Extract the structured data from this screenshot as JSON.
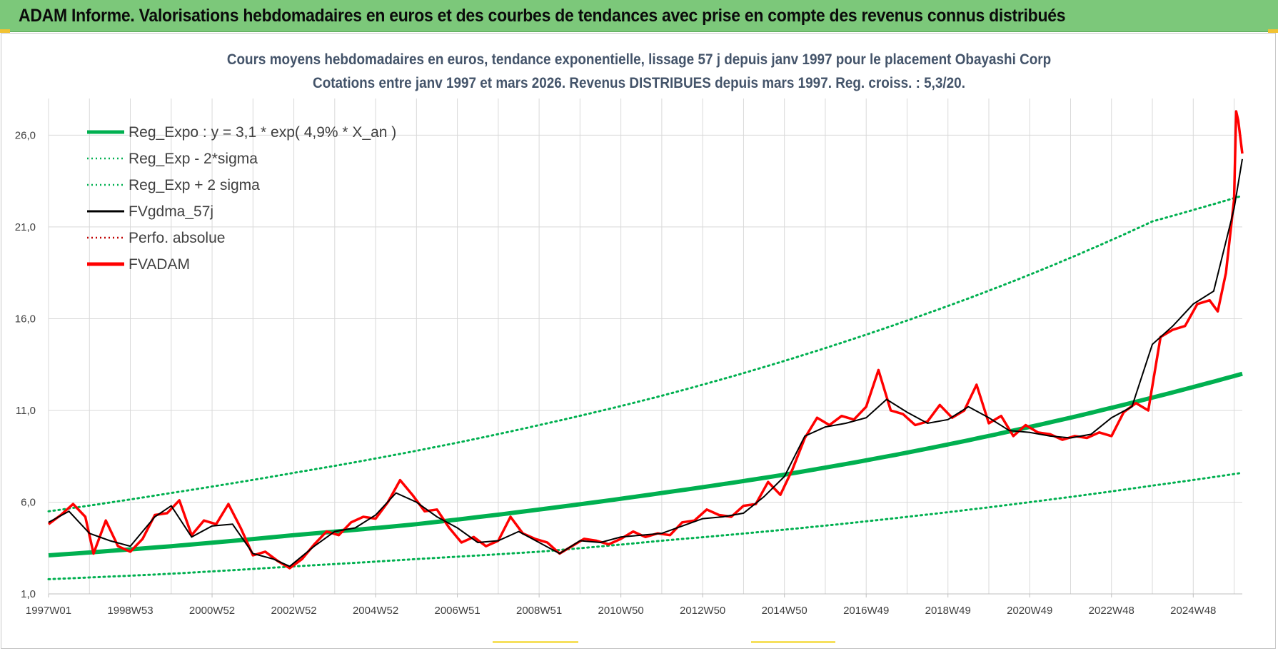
{
  "banner": {
    "text": "ADAM Informe. Valorisations hebdomadaires en euros et des courbes de tendances avec prise en compte des revenus connus distribués"
  },
  "colors": {
    "banner_bg": "#7cc87a",
    "title_text": "#44546a",
    "reg_expo": "#00b050",
    "fvgdma": "#000000",
    "perfo": "#c00000",
    "fvadam": "#ff0000",
    "grid": "#d9d9d9"
  },
  "chart_data": {
    "type": "line",
    "title_line1": "Cours moyens hebdomadaires en euros, tendance exponentielle, lissage 57 j depuis janv 1997 pour le placement Obayashi Corp",
    "title_line2": "Cotations entre janv 1997 et mars 2026. Revenus DISTRIBUES depuis mars 1997. Reg. croiss. : 5,3/20.",
    "ylim": [
      1.0,
      28.0
    ],
    "y_ticks": [
      1.0,
      6.0,
      11.0,
      16.0,
      21.0,
      26.0
    ],
    "y_tick_labels": [
      "1,0",
      "6,0",
      "11,0",
      "16,0",
      "21,0",
      "26,0"
    ],
    "x_range": [
      1997.0,
      2026.2
    ],
    "x_tick_labels": [
      "1997W01",
      "1998W53",
      "2000W52",
      "2002W52",
      "2004W52",
      "2006W51",
      "2008W51",
      "2010W50",
      "2012W50",
      "2014W50",
      "2016W49",
      "2018W49",
      "2020W49",
      "2022W48",
      "2024W48"
    ],
    "x_tick_years": [
      1997.0,
      1999.0,
      2001.0,
      2003.0,
      2005.0,
      2007.0,
      2009.0,
      2011.0,
      2013.0,
      2015.0,
      2017.0,
      2019.0,
      2021.0,
      2023.0,
      2025.0
    ],
    "grid": true,
    "legend_position": "top-left",
    "legend": [
      {
        "key": "reg_expo",
        "label": "Reg_Expo : y = 3,1 * exp( 4,9% *  X_an )",
        "color": "#00b050",
        "style": "solid-thick"
      },
      {
        "key": "reg_minus",
        "label": "Reg_Exp - 2*sigma",
        "color": "#00b050",
        "style": "dotted"
      },
      {
        "key": "reg_plus",
        "label": "Reg_Exp + 2 sigma",
        "color": "#00b050",
        "style": "dotted"
      },
      {
        "key": "fvgdma",
        "label": "FVgdma_57j",
        "color": "#000000",
        "style": "solid"
      },
      {
        "key": "perfo",
        "label": "Perfo. absolue",
        "color": "#c00000",
        "style": "dotted"
      },
      {
        "key": "fvadam",
        "label": "FVADAM",
        "color": "#ff0000",
        "style": "solid-thick"
      }
    ],
    "series": [
      {
        "name": "Reg_Expo : y = 3,1 * exp( 4,9% *  X_an )",
        "x": [
          1997.0,
          2000.0,
          2003.0,
          2006.0,
          2009.0,
          2012.0,
          2015.0,
          2018.0,
          2021.0,
          2024.0,
          2026.2
        ],
        "values": [
          3.1,
          3.6,
          4.2,
          4.8,
          5.6,
          6.5,
          7.5,
          8.7,
          10.1,
          11.7,
          13.0
        ]
      },
      {
        "name": "Reg_Exp - 2*sigma",
        "x": [
          1997.0,
          2000.0,
          2003.0,
          2006.0,
          2009.0,
          2012.0,
          2015.0,
          2018.0,
          2021.0,
          2024.0,
          2026.2
        ],
        "values": [
          1.8,
          2.1,
          2.5,
          2.9,
          3.3,
          3.9,
          4.5,
          5.2,
          6.0,
          6.9,
          7.6
        ]
      },
      {
        "name": "Reg_Exp + 2 sigma",
        "x": [
          1997.0,
          2000.0,
          2003.0,
          2006.0,
          2009.0,
          2012.0,
          2015.0,
          2018.0,
          2021.0,
          2024.0,
          2026.2
        ],
        "values": [
          5.5,
          6.5,
          7.6,
          8.8,
          10.2,
          11.8,
          13.7,
          15.9,
          18.4,
          21.3,
          22.7
        ]
      },
      {
        "name": "FVgdma_57j",
        "x": [
          1997.0,
          1997.5,
          1998.0,
          1998.5,
          1999.0,
          1999.6,
          2000.0,
          2000.5,
          2001.0,
          2001.5,
          2002.0,
          2002.5,
          2002.9,
          2003.5,
          2004.0,
          2004.5,
          2005.0,
          2005.5,
          2006.0,
          2006.5,
          2007.0,
          2007.5,
          2008.0,
          2008.5,
          2009.0,
          2009.5,
          2010.0,
          2010.5,
          2011.0,
          2011.5,
          2012.0,
          2012.5,
          2013.0,
          2013.5,
          2014.0,
          2014.5,
          2015.0,
          2015.5,
          2016.0,
          2016.5,
          2017.0,
          2017.5,
          2018.0,
          2018.5,
          2019.0,
          2019.5,
          2020.0,
          2020.5,
          2021.0,
          2021.5,
          2022.0,
          2022.5,
          2023.0,
          2023.5,
          2024.0,
          2024.5,
          2025.0,
          2025.5,
          2026.0,
          2026.2
        ],
        "values": [
          4.9,
          5.5,
          4.3,
          3.9,
          3.6,
          5.2,
          5.8,
          4.1,
          4.7,
          4.8,
          3.2,
          2.9,
          2.5,
          3.6,
          4.4,
          4.6,
          5.3,
          6.5,
          6.0,
          5.2,
          4.6,
          3.8,
          3.9,
          4.4,
          3.8,
          3.2,
          3.9,
          3.8,
          4.1,
          4.2,
          4.3,
          4.7,
          5.1,
          5.2,
          5.4,
          6.3,
          7.4,
          9.6,
          10.1,
          10.3,
          10.6,
          11.6,
          10.9,
          10.3,
          10.5,
          11.2,
          10.6,
          9.9,
          9.8,
          9.6,
          9.5,
          9.7,
          10.6,
          11.2,
          14.6,
          15.6,
          16.8,
          17.5,
          22.0,
          24.7
        ]
      },
      {
        "name": "FVADAM",
        "x": [
          1997.0,
          1997.3,
          1997.6,
          1997.9,
          1998.1,
          1998.4,
          1998.7,
          1999.0,
          1999.3,
          1999.6,
          1999.9,
          2000.2,
          2000.5,
          2000.8,
          2001.1,
          2001.4,
          2001.7,
          2002.0,
          2002.3,
          2002.6,
          2002.9,
          2003.2,
          2003.5,
          2003.8,
          2004.1,
          2004.4,
          2004.7,
          2005.0,
          2005.3,
          2005.6,
          2005.9,
          2006.2,
          2006.5,
          2006.8,
          2007.1,
          2007.4,
          2007.7,
          2008.0,
          2008.3,
          2008.6,
          2008.9,
          2009.2,
          2009.5,
          2009.8,
          2010.1,
          2010.4,
          2010.7,
          2011.0,
          2011.3,
          2011.6,
          2011.9,
          2012.2,
          2012.5,
          2012.8,
          2013.1,
          2013.4,
          2013.7,
          2014.0,
          2014.3,
          2014.6,
          2014.9,
          2015.2,
          2015.5,
          2015.8,
          2016.1,
          2016.4,
          2016.7,
          2017.0,
          2017.3,
          2017.6,
          2017.9,
          2018.2,
          2018.5,
          2018.8,
          2019.1,
          2019.4,
          2019.7,
          2020.0,
          2020.3,
          2020.6,
          2020.9,
          2021.2,
          2021.5,
          2021.8,
          2022.1,
          2022.4,
          2022.7,
          2023.0,
          2023.3,
          2023.6,
          2023.9,
          2024.2,
          2024.5,
          2024.8,
          2025.1,
          2025.4,
          2025.6,
          2025.8,
          2026.0,
          2026.05,
          2026.1,
          2026.2
        ],
        "values": [
          4.8,
          5.3,
          5.9,
          5.2,
          3.2,
          5.0,
          3.6,
          3.3,
          4.0,
          5.3,
          5.4,
          6.1,
          4.2,
          5.0,
          4.8,
          5.9,
          4.6,
          3.1,
          3.3,
          2.8,
          2.4,
          2.9,
          3.7,
          4.4,
          4.2,
          4.9,
          5.2,
          5.1,
          6.0,
          7.2,
          6.4,
          5.5,
          5.6,
          4.6,
          3.8,
          4.1,
          3.6,
          3.9,
          5.2,
          4.3,
          4.0,
          3.8,
          3.2,
          3.6,
          4.0,
          3.9,
          3.7,
          4.0,
          4.4,
          4.1,
          4.3,
          4.2,
          4.9,
          5.0,
          5.6,
          5.3,
          5.2,
          5.8,
          5.9,
          7.1,
          6.4,
          7.8,
          9.5,
          10.6,
          10.2,
          10.7,
          10.5,
          11.2,
          13.2,
          11.0,
          10.8,
          10.2,
          10.4,
          11.3,
          10.6,
          11.0,
          12.4,
          10.3,
          10.7,
          9.6,
          10.2,
          9.8,
          9.7,
          9.4,
          9.6,
          9.5,
          9.8,
          9.6,
          10.9,
          11.4,
          11.0,
          15.0,
          15.4,
          15.6,
          16.8,
          17.0,
          16.4,
          18.5,
          22.5,
          27.3,
          26.8,
          25.0
        ]
      }
    ]
  }
}
